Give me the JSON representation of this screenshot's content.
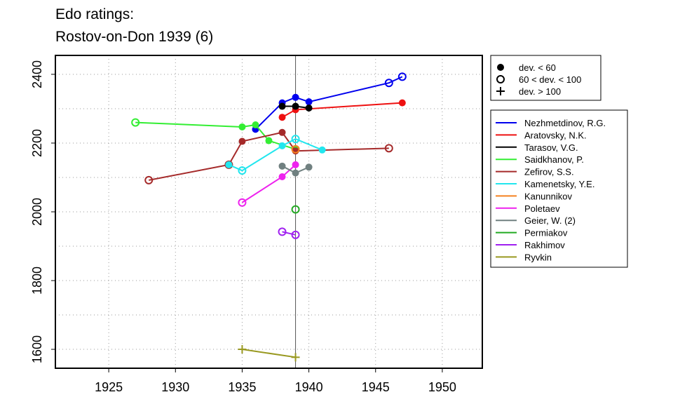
{
  "chart_data": {
    "type": "line",
    "title": [
      "Edo ratings:",
      "Rostov-on-Don 1939 (6)"
    ],
    "xlabel": "",
    "ylabel": "",
    "xlim": [
      1921,
      1953
    ],
    "ylim": [
      1545,
      2455
    ],
    "xticks": [
      1925,
      1930,
      1935,
      1940,
      1945,
      1950
    ],
    "yticks": [
      1600,
      1800,
      2000,
      2200,
      2400
    ],
    "ygrid": [
      1600,
      1700,
      1800,
      1900,
      2000,
      2100,
      2200,
      2300,
      2400
    ],
    "grid": "dotted",
    "reference_line_x": 1939,
    "marker_legend": [
      {
        "label": "dev. < 60",
        "symbol": "filled-circle"
      },
      {
        "label": "60 < dev. < 100",
        "symbol": "open-circle"
      },
      {
        "label": "dev. > 100",
        "symbol": "plus"
      }
    ],
    "series": [
      {
        "name": "Nezhmetdinov, R.G.",
        "color": "#0000ee",
        "points": [
          {
            "x": 1936,
            "y": 2240,
            "m": "filled"
          },
          {
            "x": 1938,
            "y": 2317,
            "m": "filled"
          },
          {
            "x": 1939,
            "y": 2333,
            "m": "filled"
          },
          {
            "x": 1940,
            "y": 2320,
            "m": "filled"
          },
          {
            "x": 1946,
            "y": 2375,
            "m": "open"
          },
          {
            "x": 1947,
            "y": 2393,
            "m": "open"
          }
        ]
      },
      {
        "name": "Aratovsky, N.K.",
        "color": "#ee1111",
        "points": [
          {
            "x": 1938,
            "y": 2275,
            "m": "filled"
          },
          {
            "x": 1939,
            "y": 2297,
            "m": "filled"
          },
          {
            "x": 1947,
            "y": 2317,
            "m": "filled"
          }
        ]
      },
      {
        "name": "Tarasov, V.G.",
        "color": "#000000",
        "points": [
          {
            "x": 1938,
            "y": 2307,
            "m": "filled"
          },
          {
            "x": 1939,
            "y": 2307,
            "m": "filled"
          },
          {
            "x": 1940,
            "y": 2302,
            "m": "filled"
          }
        ]
      },
      {
        "name": "Saidkhanov, P.",
        "color": "#33ee33",
        "points": [
          {
            "x": 1927,
            "y": 2260,
            "m": "open"
          },
          {
            "x": 1935,
            "y": 2247,
            "m": "filled"
          },
          {
            "x": 1936,
            "y": 2253,
            "m": "filled"
          },
          {
            "x": 1937,
            "y": 2207,
            "m": "filled"
          },
          {
            "x": 1939,
            "y": 2182,
            "m": "filled"
          }
        ]
      },
      {
        "name": "Zefirov, S.S.",
        "color": "#a52a2a",
        "points": [
          {
            "x": 1928,
            "y": 2092,
            "m": "open"
          },
          {
            "x": 1934,
            "y": 2137,
            "m": "open"
          },
          {
            "x": 1935,
            "y": 2205,
            "m": "filled"
          },
          {
            "x": 1938,
            "y": 2231,
            "m": "filled"
          },
          {
            "x": 1939,
            "y": 2177,
            "m": "filled"
          },
          {
            "x": 1946,
            "y": 2185,
            "m": "open"
          }
        ]
      },
      {
        "name": "Kamenetsky, Y.E.",
        "color": "#22e6ee",
        "points": [
          {
            "x": 1934,
            "y": 2137,
            "m": "filled"
          },
          {
            "x": 1935,
            "y": 2120,
            "m": "open"
          },
          {
            "x": 1938,
            "y": 2192,
            "m": "filled"
          },
          {
            "x": 1939,
            "y": 2212,
            "m": "open"
          },
          {
            "x": 1941,
            "y": 2180,
            "m": "filled"
          }
        ]
      },
      {
        "name": "Kanunnikov",
        "color": "#f58220",
        "points": [
          {
            "x": 1939,
            "y": 2182,
            "m": "open"
          }
        ]
      },
      {
        "name": "Poletaev",
        "color": "#ee22ee",
        "points": [
          {
            "x": 1935,
            "y": 2027,
            "m": "open"
          },
          {
            "x": 1938,
            "y": 2102,
            "m": "filled"
          },
          {
            "x": 1939,
            "y": 2137,
            "m": "filled"
          }
        ]
      },
      {
        "name": "Geier, W. (2)",
        "color": "#708080",
        "points": [
          {
            "x": 1938,
            "y": 2133,
            "m": "filled"
          },
          {
            "x": 1939,
            "y": 2113,
            "m": "filled"
          },
          {
            "x": 1940,
            "y": 2130,
            "m": "filled"
          }
        ]
      },
      {
        "name": "Permiakov",
        "color": "#22aa22",
        "points": [
          {
            "x": 1939,
            "y": 2007,
            "m": "open"
          }
        ]
      },
      {
        "name": "Rakhimov",
        "color": "#a020f0",
        "points": [
          {
            "x": 1938,
            "y": 1942,
            "m": "open"
          },
          {
            "x": 1939,
            "y": 1933,
            "m": "open"
          }
        ]
      },
      {
        "name": "Ryvkin",
        "color": "#999920",
        "points": [
          {
            "x": 1935,
            "y": 1600,
            "m": "plus"
          },
          {
            "x": 1939,
            "y": 1577,
            "m": "plus"
          }
        ]
      }
    ]
  }
}
